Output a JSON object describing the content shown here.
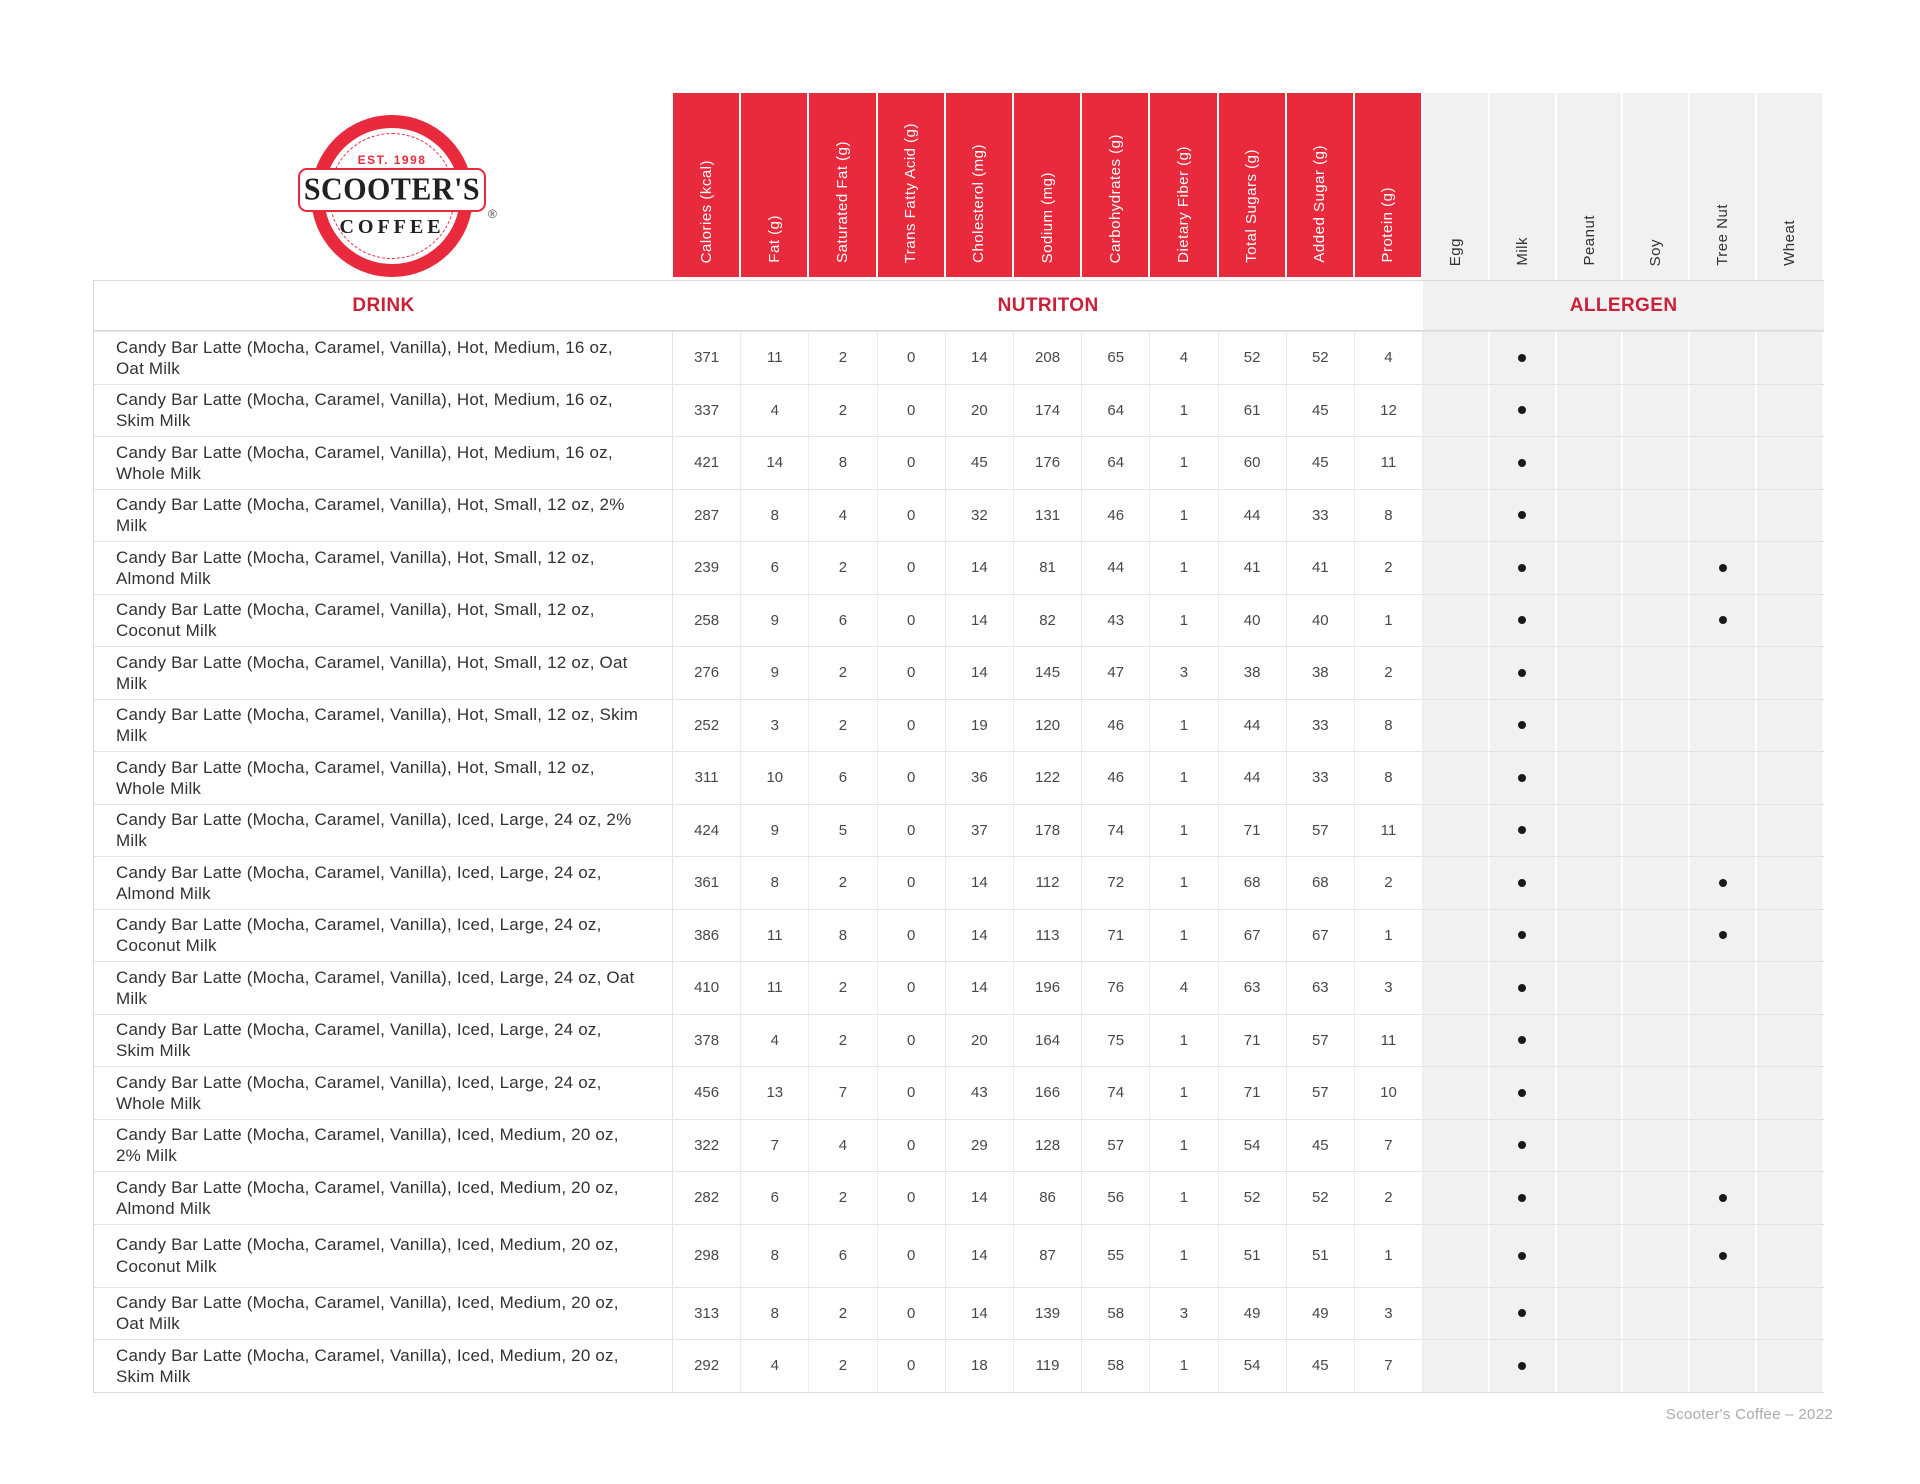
{
  "brand": {
    "est_label": "EST. 1998",
    "wordmark": "SCOOTER'S",
    "coffee_label": "COFFEE",
    "registered_mark": "®"
  },
  "table": {
    "section_headers": {
      "drink": "DRINK",
      "nutrition": "NUTRITON",
      "allergen": "ALLERGEN"
    },
    "nutrition_columns": [
      "Calories (kcal)",
      "Fat (g)",
      "Saturated Fat (g)",
      "Trans Fatty Acid (g)",
      "Cholesterol (mg)",
      "Sodium (mg)",
      "Carbohydrates (g)",
      "Dietary Fiber (g)",
      "Total Sugars (g)",
      "Added Sugar (g)",
      "Protein (g)"
    ],
    "allergen_columns": [
      "Egg",
      "Milk",
      "Peanut",
      "Soy",
      "Tree Nut",
      "Wheat"
    ],
    "rows": [
      {
        "drink": "Candy Bar Latte (Mocha, Caramel, Vanilla), Hot, Medium, 16 oz, Oat Milk",
        "values": [
          371,
          11,
          2,
          0,
          14,
          208,
          65,
          4,
          52,
          52,
          4
        ],
        "allergens": [
          0,
          1,
          0,
          0,
          0,
          0
        ]
      },
      {
        "drink": "Candy Bar Latte (Mocha, Caramel, Vanilla), Hot, Medium, 16 oz, Skim Milk",
        "values": [
          337,
          4,
          2,
          0,
          20,
          174,
          64,
          1,
          61,
          45,
          12
        ],
        "allergens": [
          0,
          1,
          0,
          0,
          0,
          0
        ]
      },
      {
        "drink": "Candy Bar Latte (Mocha, Caramel, Vanilla), Hot, Medium, 16 oz, Whole Milk",
        "values": [
          421,
          14,
          8,
          0,
          45,
          176,
          64,
          1,
          60,
          45,
          11
        ],
        "allergens": [
          0,
          1,
          0,
          0,
          0,
          0
        ]
      },
      {
        "drink": "Candy Bar Latte (Mocha, Caramel, Vanilla), Hot, Small, 12 oz, 2% Milk",
        "values": [
          287,
          8,
          4,
          0,
          32,
          131,
          46,
          1,
          44,
          33,
          8
        ],
        "allergens": [
          0,
          1,
          0,
          0,
          0,
          0
        ]
      },
      {
        "drink": "Candy Bar Latte (Mocha, Caramel, Vanilla), Hot, Small, 12 oz, Almond Milk",
        "values": [
          239,
          6,
          2,
          0,
          14,
          81,
          44,
          1,
          41,
          41,
          2
        ],
        "allergens": [
          0,
          1,
          0,
          0,
          1,
          0
        ]
      },
      {
        "drink": "Candy Bar Latte (Mocha, Caramel, Vanilla), Hot, Small, 12 oz, Coconut Milk",
        "values": [
          258,
          9,
          6,
          0,
          14,
          82,
          43,
          1,
          40,
          40,
          1
        ],
        "allergens": [
          0,
          1,
          0,
          0,
          1,
          0
        ]
      },
      {
        "drink": "Candy Bar Latte (Mocha, Caramel, Vanilla), Hot, Small, 12 oz, Oat Milk",
        "values": [
          276,
          9,
          2,
          0,
          14,
          145,
          47,
          3,
          38,
          38,
          2
        ],
        "allergens": [
          0,
          1,
          0,
          0,
          0,
          0
        ]
      },
      {
        "drink": "Candy Bar Latte (Mocha, Caramel, Vanilla), Hot, Small, 12 oz, Skim Milk",
        "values": [
          252,
          3,
          2,
          0,
          19,
          120,
          46,
          1,
          44,
          33,
          8
        ],
        "allergens": [
          0,
          1,
          0,
          0,
          0,
          0
        ]
      },
      {
        "drink": "Candy Bar Latte (Mocha, Caramel, Vanilla), Hot, Small, 12 oz, Whole Milk",
        "values": [
          311,
          10,
          6,
          0,
          36,
          122,
          46,
          1,
          44,
          33,
          8
        ],
        "allergens": [
          0,
          1,
          0,
          0,
          0,
          0
        ]
      },
      {
        "drink": "Candy Bar Latte (Mocha, Caramel, Vanilla), Iced, Large, 24 oz, 2% Milk",
        "values": [
          424,
          9,
          5,
          0,
          37,
          178,
          74,
          1,
          71,
          57,
          11
        ],
        "allergens": [
          0,
          1,
          0,
          0,
          0,
          0
        ]
      },
      {
        "drink": "Candy Bar Latte (Mocha, Caramel, Vanilla), Iced, Large, 24 oz, Almond Milk",
        "values": [
          361,
          8,
          2,
          0,
          14,
          112,
          72,
          1,
          68,
          68,
          2
        ],
        "allergens": [
          0,
          1,
          0,
          0,
          1,
          0
        ]
      },
      {
        "drink": "Candy Bar Latte (Mocha, Caramel, Vanilla), Iced, Large, 24 oz, Coconut Milk",
        "values": [
          386,
          11,
          8,
          0,
          14,
          113,
          71,
          1,
          67,
          67,
          1
        ],
        "allergens": [
          0,
          1,
          0,
          0,
          1,
          0
        ]
      },
      {
        "drink": "Candy Bar Latte (Mocha, Caramel, Vanilla), Iced, Large, 24 oz, Oat Milk",
        "values": [
          410,
          11,
          2,
          0,
          14,
          196,
          76,
          4,
          63,
          63,
          3
        ],
        "allergens": [
          0,
          1,
          0,
          0,
          0,
          0
        ]
      },
      {
        "drink": "Candy Bar Latte (Mocha, Caramel, Vanilla), Iced, Large, 24 oz, Skim Milk",
        "values": [
          378,
          4,
          2,
          0,
          20,
          164,
          75,
          1,
          71,
          57,
          11
        ],
        "allergens": [
          0,
          1,
          0,
          0,
          0,
          0
        ]
      },
      {
        "drink": "Candy Bar Latte (Mocha, Caramel, Vanilla), Iced, Large, 24 oz, Whole Milk",
        "values": [
          456,
          13,
          7,
          0,
          43,
          166,
          74,
          1,
          71,
          57,
          10
        ],
        "allergens": [
          0,
          1,
          0,
          0,
          0,
          0
        ]
      },
      {
        "drink": "Candy Bar Latte (Mocha, Caramel, Vanilla), Iced, Medium, 20 oz, 2% Milk",
        "values": [
          322,
          7,
          4,
          0,
          29,
          128,
          57,
          1,
          54,
          45,
          7
        ],
        "allergens": [
          0,
          1,
          0,
          0,
          0,
          0
        ]
      },
      {
        "drink": "Candy Bar Latte (Mocha, Caramel, Vanilla), Iced, Medium, 20 oz, Almond Milk",
        "values": [
          282,
          6,
          2,
          0,
          14,
          86,
          56,
          1,
          52,
          52,
          2
        ],
        "allergens": [
          0,
          1,
          0,
          0,
          1,
          0
        ]
      },
      {
        "drink": "Candy Bar Latte (Mocha, Caramel, Vanilla), Iced, Medium, 20 oz,\nCoconut Milk",
        "tall": true,
        "values": [
          298,
          8,
          6,
          0,
          14,
          87,
          55,
          1,
          51,
          51,
          1
        ],
        "allergens": [
          0,
          1,
          0,
          0,
          1,
          0
        ]
      },
      {
        "drink": "Candy Bar Latte (Mocha, Caramel, Vanilla), Iced, Medium, 20 oz, Oat Milk",
        "values": [
          313,
          8,
          2,
          0,
          14,
          139,
          58,
          3,
          49,
          49,
          3
        ],
        "allergens": [
          0,
          1,
          0,
          0,
          0,
          0
        ]
      },
      {
        "drink": "Candy Bar Latte (Mocha, Caramel, Vanilla), Iced, Medium, 20 oz, Skim Milk",
        "values": [
          292,
          4,
          2,
          0,
          18,
          119,
          58,
          1,
          54,
          45,
          7
        ],
        "allergens": [
          0,
          1,
          0,
          0,
          0,
          0
        ]
      }
    ]
  },
  "footer": {
    "credit": "Scooter's Coffee – 2022"
  },
  "colors": {
    "red": "#e9293c",
    "title_red": "#c92138",
    "allergen_bg": "#f1f1f2",
    "grid_line": "#e3e3e4",
    "text": "#323234",
    "muted": "#a9abae"
  }
}
